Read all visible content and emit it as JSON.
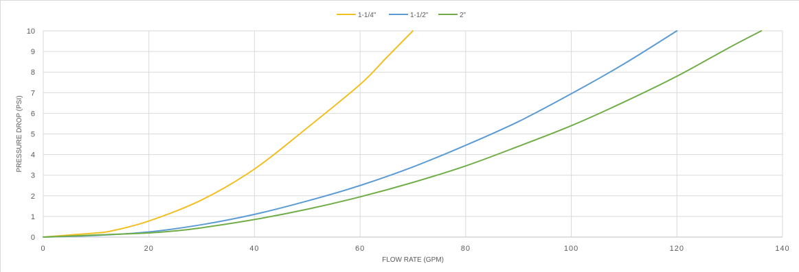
{
  "chart_data": {
    "type": "line",
    "title": "",
    "xlabel": "FLOW RATE (GPM)",
    "ylabel": "PRESSURE DROP (PSI)",
    "xlim": [
      0,
      140
    ],
    "ylim": [
      0,
      10
    ],
    "x_ticks": [
      0,
      20,
      40,
      60,
      80,
      100,
      120,
      140
    ],
    "y_ticks": [
      0,
      1,
      2,
      3,
      4,
      5,
      6,
      7,
      8,
      9,
      10
    ],
    "grid": true,
    "legend_position": "top-center",
    "series": [
      {
        "name": "1-1/4\"",
        "color": "#f2bf22",
        "points": [
          [
            0,
            0
          ],
          [
            5,
            0.1
          ],
          [
            10,
            0.2
          ],
          [
            13,
            0.3
          ],
          [
            20,
            0.78
          ],
          [
            30,
            1.8
          ],
          [
            40,
            3.3
          ],
          [
            50,
            5.3
          ],
          [
            60,
            7.4
          ],
          [
            65,
            8.7
          ],
          [
            70,
            10
          ]
        ]
      },
      {
        "name": "1-1/2\"",
        "color": "#5b9bd5",
        "points": [
          [
            0,
            0
          ],
          [
            10,
            0.08
          ],
          [
            20,
            0.25
          ],
          [
            30,
            0.6
          ],
          [
            40,
            1.1
          ],
          [
            50,
            1.75
          ],
          [
            60,
            2.5
          ],
          [
            70,
            3.4
          ],
          [
            80,
            4.45
          ],
          [
            90,
            5.6
          ],
          [
            100,
            6.95
          ],
          [
            110,
            8.4
          ],
          [
            120,
            10
          ]
        ]
      },
      {
        "name": "2\"",
        "color": "#70ad47",
        "points": [
          [
            0,
            0
          ],
          [
            10,
            0.1
          ],
          [
            20,
            0.2
          ],
          [
            25,
            0.3
          ],
          [
            30,
            0.45
          ],
          [
            40,
            0.85
          ],
          [
            50,
            1.35
          ],
          [
            60,
            1.95
          ],
          [
            70,
            2.65
          ],
          [
            80,
            3.45
          ],
          [
            90,
            4.4
          ],
          [
            100,
            5.4
          ],
          [
            110,
            6.55
          ],
          [
            120,
            7.8
          ],
          [
            130,
            9.2
          ],
          [
            136,
            10
          ]
        ]
      }
    ]
  }
}
